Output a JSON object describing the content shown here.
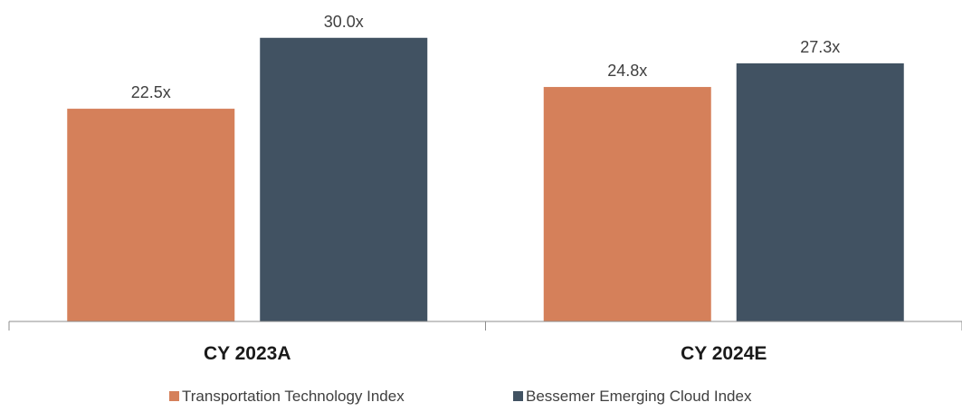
{
  "chart_data": {
    "type": "bar",
    "categories": [
      "CY 2023A",
      "CY 2024E"
    ],
    "series": [
      {
        "name": "Transportation Technology Index",
        "values": [
          22.5,
          24.8
        ],
        "labels": [
          "22.5x",
          "24.8x"
        ],
        "color": "#d5805a"
      },
      {
        "name": "Bessemer Emerging Cloud Index",
        "values": [
          30.0,
          27.3
        ],
        "labels": [
          "30.0x",
          "27.3x"
        ],
        "color": "#415262"
      }
    ],
    "ylim": [
      0,
      34
    ],
    "grid": false,
    "legend_position": "bottom-center",
    "axis_color": "#8c8c8c"
  }
}
